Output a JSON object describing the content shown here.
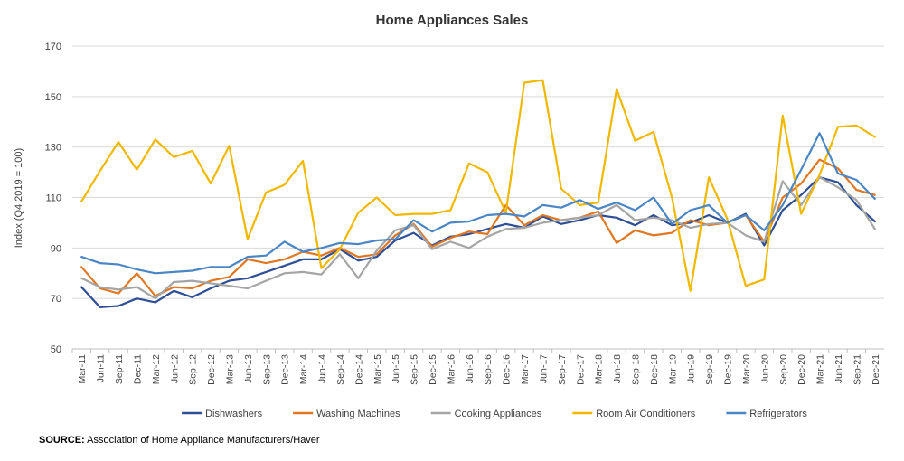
{
  "chart_data": {
    "type": "line",
    "title": "Home Appliances Sales",
    "ylabel": "Index (Q4 2019 = 100)",
    "xlabel": "",
    "ylim": [
      50,
      170
    ],
    "yticks": [
      50,
      70,
      90,
      110,
      130,
      150,
      170
    ],
    "grid": true,
    "legend_position": "bottom",
    "x": [
      "Mar-11",
      "Jun-11",
      "Sep-11",
      "Dec-11",
      "Mar-12",
      "Jun-12",
      "Sep-12",
      "Dec-12",
      "Mar-13",
      "Jun-13",
      "Sep-13",
      "Dec-13",
      "Mar-14",
      "Jun-14",
      "Sep-14",
      "Dec-14",
      "Mar-15",
      "Jun-15",
      "Sep-15",
      "Dec-15",
      "Mar-16",
      "Jun-16",
      "Sep-16",
      "Dec-16",
      "Mar-17",
      "Jun-17",
      "Sep-17",
      "Dec-17",
      "Mar-18",
      "Jun-18",
      "Sep-18",
      "Dec-18",
      "Mar-19",
      "Jun-19",
      "Sep-19",
      "Dec-19",
      "Mar-20",
      "Jun-20",
      "Sep-20",
      "Dec-20",
      "Mar-21",
      "Jun-21",
      "Sep-21",
      "Dec-21"
    ],
    "series": [
      {
        "name": "Dishwashers",
        "color": "#2e4e96",
        "values": [
          74.5,
          66.5,
          67,
          70,
          68.5,
          73,
          70.5,
          74,
          77,
          78,
          80.5,
          83,
          85.5,
          85.5,
          89.5,
          85,
          86.5,
          93,
          96,
          91,
          94.5,
          95.5,
          97.5,
          99.5,
          98,
          102.5,
          99.5,
          101,
          103,
          102,
          99,
          103,
          99,
          100,
          103,
          100,
          103.5,
          91,
          105,
          111,
          118,
          116,
          107,
          100.5
        ]
      },
      {
        "name": "Washing Machines",
        "color": "#e07722",
        "values": [
          82.5,
          74,
          72,
          80,
          71,
          74.5,
          74,
          77,
          78.5,
          85.5,
          84,
          85.5,
          88.5,
          87,
          90,
          86.5,
          87.5,
          95,
          99.5,
          90.5,
          94,
          96.5,
          95.5,
          107,
          99,
          103,
          101,
          102,
          104.5,
          92,
          97,
          95,
          96,
          101,
          99,
          100,
          103,
          92.5,
          110,
          115.5,
          125,
          121.5,
          113,
          111
        ]
      },
      {
        "name": "Cooking Appliances",
        "color": "#a5a5a5",
        "values": [
          78,
          74.5,
          73.5,
          74.5,
          70,
          76.5,
          77,
          76,
          75,
          74,
          77,
          80,
          80.5,
          79.5,
          87.5,
          78,
          89,
          97,
          99,
          89.5,
          92.5,
          90,
          94.5,
          97.5,
          98,
          100,
          101,
          102,
          103,
          107,
          101,
          102,
          101,
          98,
          99.5,
          100,
          95,
          92.5,
          116.5,
          107,
          118,
          114,
          109,
          97.5
        ]
      },
      {
        "name": "Room Air Conditioners",
        "color": "#f0b800",
        "values": [
          108.5,
          120.5,
          132,
          121,
          133,
          126,
          128.5,
          115.5,
          130.5,
          93.5,
          112,
          115,
          124.5,
          82,
          89.5,
          104,
          110,
          103,
          103.5,
          103.5,
          105,
          123.5,
          120,
          104,
          155.5,
          156.5,
          113.5,
          107,
          108,
          153,
          132.5,
          136,
          110,
          73,
          118,
          101.5,
          75,
          77.5,
          142.5,
          103.5,
          119,
          138,
          138.5,
          134
        ]
      },
      {
        "name": "Refrigerators",
        "color": "#4a86c5",
        "values": [
          86.5,
          84,
          83.5,
          81.5,
          80,
          80.5,
          81,
          82.5,
          82.5,
          86.5,
          87,
          92.5,
          88.5,
          90,
          92,
          91.5,
          93,
          93.5,
          101,
          96.5,
          100,
          100.5,
          103,
          103.5,
          102.5,
          107,
          106,
          109,
          105.5,
          108,
          105,
          110,
          99.5,
          105,
          107,
          100,
          103,
          97,
          107,
          121,
          135.5,
          119.5,
          117,
          109.5
        ]
      }
    ]
  },
  "source": {
    "label": "SOURCE:",
    "text": " Association of Home Appliance Manufacturers/Haver"
  }
}
